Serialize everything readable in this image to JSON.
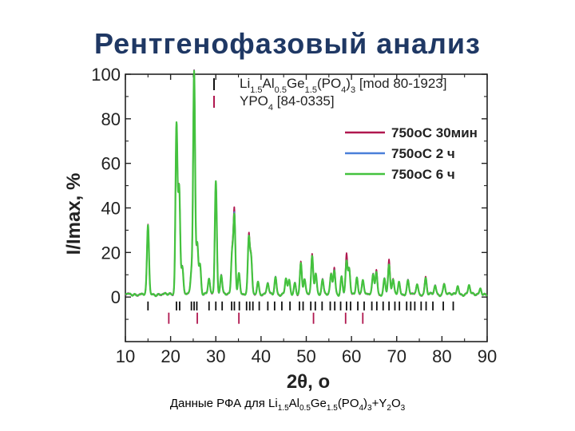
{
  "page": {
    "title": "Рентгенофазовый анализ",
    "caption_parts": [
      {
        "t": "Данные РФА для Li"
      },
      {
        "t": "1.5",
        "sub": true
      },
      {
        "t": "Al"
      },
      {
        "t": "0.5",
        "sub": true
      },
      {
        "t": "Ge"
      },
      {
        "t": "1.5",
        "sub": true
      },
      {
        "t": "(PO"
      },
      {
        "t": "4",
        "sub": true
      },
      {
        "t": ")"
      },
      {
        "t": "3",
        "sub": true
      },
      {
        "t": "+Y"
      },
      {
        "t": "2",
        "sub": true
      },
      {
        "t": "O"
      },
      {
        "t": "3",
        "sub": true
      }
    ]
  },
  "chart_data": {
    "type": "line",
    "xlabel": "2θ, о",
    "ylabel": "I/Imax, %",
    "xlim": [
      10,
      90
    ],
    "ylim": [
      -20,
      100
    ],
    "xticks": [
      10,
      20,
      30,
      40,
      50,
      60,
      70,
      80,
      90
    ],
    "yticks": [
      0,
      20,
      40,
      60,
      80,
      100
    ],
    "grid": false,
    "legend_position": "top-right",
    "series": [
      {
        "name": "750oC 30мин",
        "color": "#b0174f"
      },
      {
        "name": "750oC 2 ч",
        "color": "#4a7fd9"
      },
      {
        "name": "750oC 6 ч",
        "color": "#44c23e"
      }
    ],
    "peaks": [
      [
        15.0,
        31,
        31,
        31
      ],
      [
        21.3,
        76,
        76,
        76
      ],
      [
        21.9,
        48,
        48,
        48
      ],
      [
        22.6,
        12,
        12,
        12
      ],
      [
        24.6,
        10,
        10,
        10
      ],
      [
        25.2,
        100,
        100,
        100
      ],
      [
        25.9,
        23,
        23,
        23
      ],
      [
        26.5,
        13,
        13,
        13
      ],
      [
        28.5,
        7,
        7,
        7
      ],
      [
        30.0,
        51,
        51,
        51
      ],
      [
        31.2,
        9,
        9,
        9
      ],
      [
        33.6,
        19,
        18,
        18
      ],
      [
        34.1,
        38,
        36,
        35
      ],
      [
        35.1,
        10,
        10,
        10
      ],
      [
        37.3,
        26,
        25,
        25
      ],
      [
        37.8,
        17,
        16,
        16
      ],
      [
        39.3,
        6,
        6,
        6
      ],
      [
        41.5,
        5,
        5,
        5
      ],
      [
        43.2,
        8,
        8,
        8
      ],
      [
        45.5,
        7,
        7,
        7
      ],
      [
        46.2,
        6,
        6,
        6
      ],
      [
        47.5,
        5,
        5,
        5
      ],
      [
        48.8,
        15,
        14,
        14
      ],
      [
        49.6,
        7,
        7,
        7
      ],
      [
        51.3,
        18,
        17,
        17
      ],
      [
        52.1,
        10,
        10,
        10
      ],
      [
        53.6,
        7,
        7,
        7
      ],
      [
        55.5,
        9,
        9,
        9
      ],
      [
        56.2,
        12,
        11,
        11
      ],
      [
        57.8,
        8,
        8,
        8
      ],
      [
        58.9,
        18,
        15,
        15
      ],
      [
        59.5,
        11,
        11,
        11
      ],
      [
        61.2,
        8,
        8,
        8
      ],
      [
        62.5,
        7,
        7,
        7
      ],
      [
        64.8,
        9,
        9,
        9
      ],
      [
        65.5,
        11,
        10,
        10
      ],
      [
        67.3,
        7,
        7,
        7
      ],
      [
        68.3,
        15,
        13,
        13
      ],
      [
        69.2,
        7,
        7,
        7
      ],
      [
        70.5,
        6,
        6,
        6
      ],
      [
        72.5,
        6,
        6,
        6
      ],
      [
        74.5,
        5,
        5,
        5
      ],
      [
        76.4,
        8,
        7,
        7
      ],
      [
        78.5,
        4,
        4,
        4
      ],
      [
        80.5,
        5,
        5,
        5
      ],
      [
        83.5,
        4,
        4,
        4
      ],
      [
        86.0,
        4,
        4,
        4
      ],
      [
        88.5,
        3,
        3,
        3
      ]
    ],
    "reference_sets": [
      {
        "label_parts": [
          {
            "t": "Li"
          },
          {
            "t": "1.5",
            "sub": true
          },
          {
            "t": "Al"
          },
          {
            "t": "0.5",
            "sub": true
          },
          {
            "t": "Ge"
          },
          {
            "t": "1.5",
            "sub": true
          },
          {
            "t": "(PO"
          },
          {
            "t": "4",
            "sub": true
          },
          {
            "t": ")"
          },
          {
            "t": "3",
            "sub": true
          },
          {
            "t": " [mod 80-1923]"
          }
        ],
        "color": "#111111",
        "y_range": [
          -6,
          -2
        ],
        "positions": [
          15.0,
          21.3,
          22.0,
          24.6,
          25.2,
          25.8,
          28.5,
          30.0,
          31.4,
          33.5,
          34.1,
          35.2,
          36.8,
          37.5,
          38.2,
          39.6,
          41.5,
          43.0,
          44.6,
          46.4,
          48.5,
          49.3,
          51.0,
          52.0,
          53.5,
          55.3,
          56.3,
          57.6,
          58.9,
          59.8,
          61.4,
          62.8,
          64.5,
          65.6,
          67.0,
          68.3,
          69.6,
          70.6,
          72.2,
          73.1,
          74.0,
          75.4,
          76.5,
          78.0,
          80.3,
          82.5
        ]
      },
      {
        "label_parts": [
          {
            "t": "YPO"
          },
          {
            "t": "4",
            "sub": true
          },
          {
            "t": " [84-0335]"
          }
        ],
        "color": "#b0174f",
        "y_range": [
          -12,
          -7
        ],
        "positions": [
          19.6,
          25.9,
          35.1,
          51.6,
          58.7,
          62.5
        ]
      }
    ]
  }
}
